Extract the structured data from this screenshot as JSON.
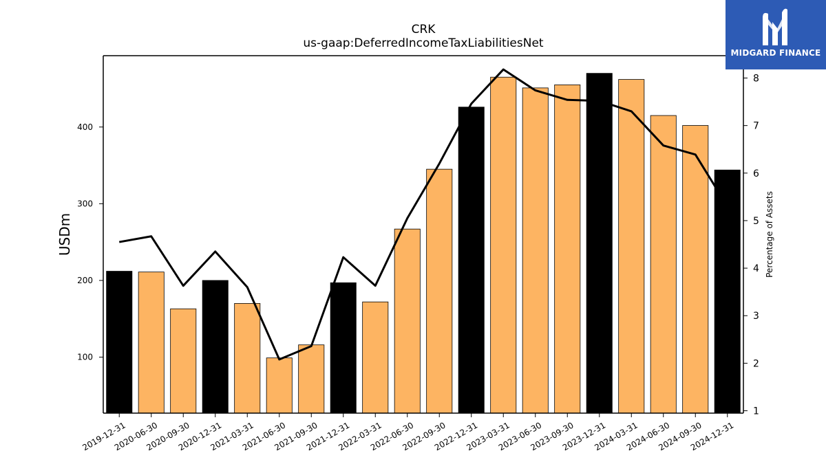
{
  "logo": {
    "text": "MIDGARD FINANCE"
  },
  "colors": {
    "annual": "#000000",
    "quarterly": "#fdb462",
    "line": "#000000",
    "logo_bg": "#2d5bb5"
  },
  "chart_data": {
    "type": "bar",
    "title": "CRK",
    "subtitle": "us-gaap:DeferredIncomeTaxLiabilitiesNet",
    "ylabel": "USDm",
    "y2label": "Percentage of Assets",
    "ylim": [
      27,
      493
    ],
    "yticks": [
      100,
      200,
      300,
      400
    ],
    "y2lim": [
      0.95,
      8.47
    ],
    "y2ticks": [
      1,
      2,
      3,
      4,
      5,
      6,
      7,
      8
    ],
    "grid": false,
    "categories": [
      "2019-12-31",
      "2020-06-30",
      "2020-09-30",
      "2020-12-31",
      "2021-03-31",
      "2021-06-30",
      "2021-09-30",
      "2021-12-31",
      "2022-03-31",
      "2022-06-30",
      "2022-09-30",
      "2022-12-31",
      "2023-03-31",
      "2023-06-30",
      "2023-09-30",
      "2023-12-31",
      "2024-03-31",
      "2024-06-30",
      "2024-09-30",
      "2024-12-31"
    ],
    "series": [
      {
        "type": "bar",
        "values": [
          212,
          211,
          163,
          200,
          170,
          99,
          116,
          197,
          172,
          267,
          345,
          426,
          465,
          451,
          455,
          470,
          462,
          415,
          402,
          344
        ],
        "annual": [
          true,
          false,
          false,
          true,
          false,
          false,
          false,
          true,
          false,
          false,
          false,
          true,
          false,
          false,
          false,
          true,
          false,
          false,
          false,
          true
        ]
      },
      {
        "type": "line",
        "axis": "right",
        "values": [
          4.55,
          4.67,
          3.63,
          4.35,
          3.6,
          2.08,
          2.36,
          4.23,
          3.63,
          5.05,
          6.2,
          7.46,
          8.18,
          7.74,
          7.54,
          7.52,
          7.3,
          6.58,
          6.39,
          5.3
        ]
      }
    ]
  }
}
